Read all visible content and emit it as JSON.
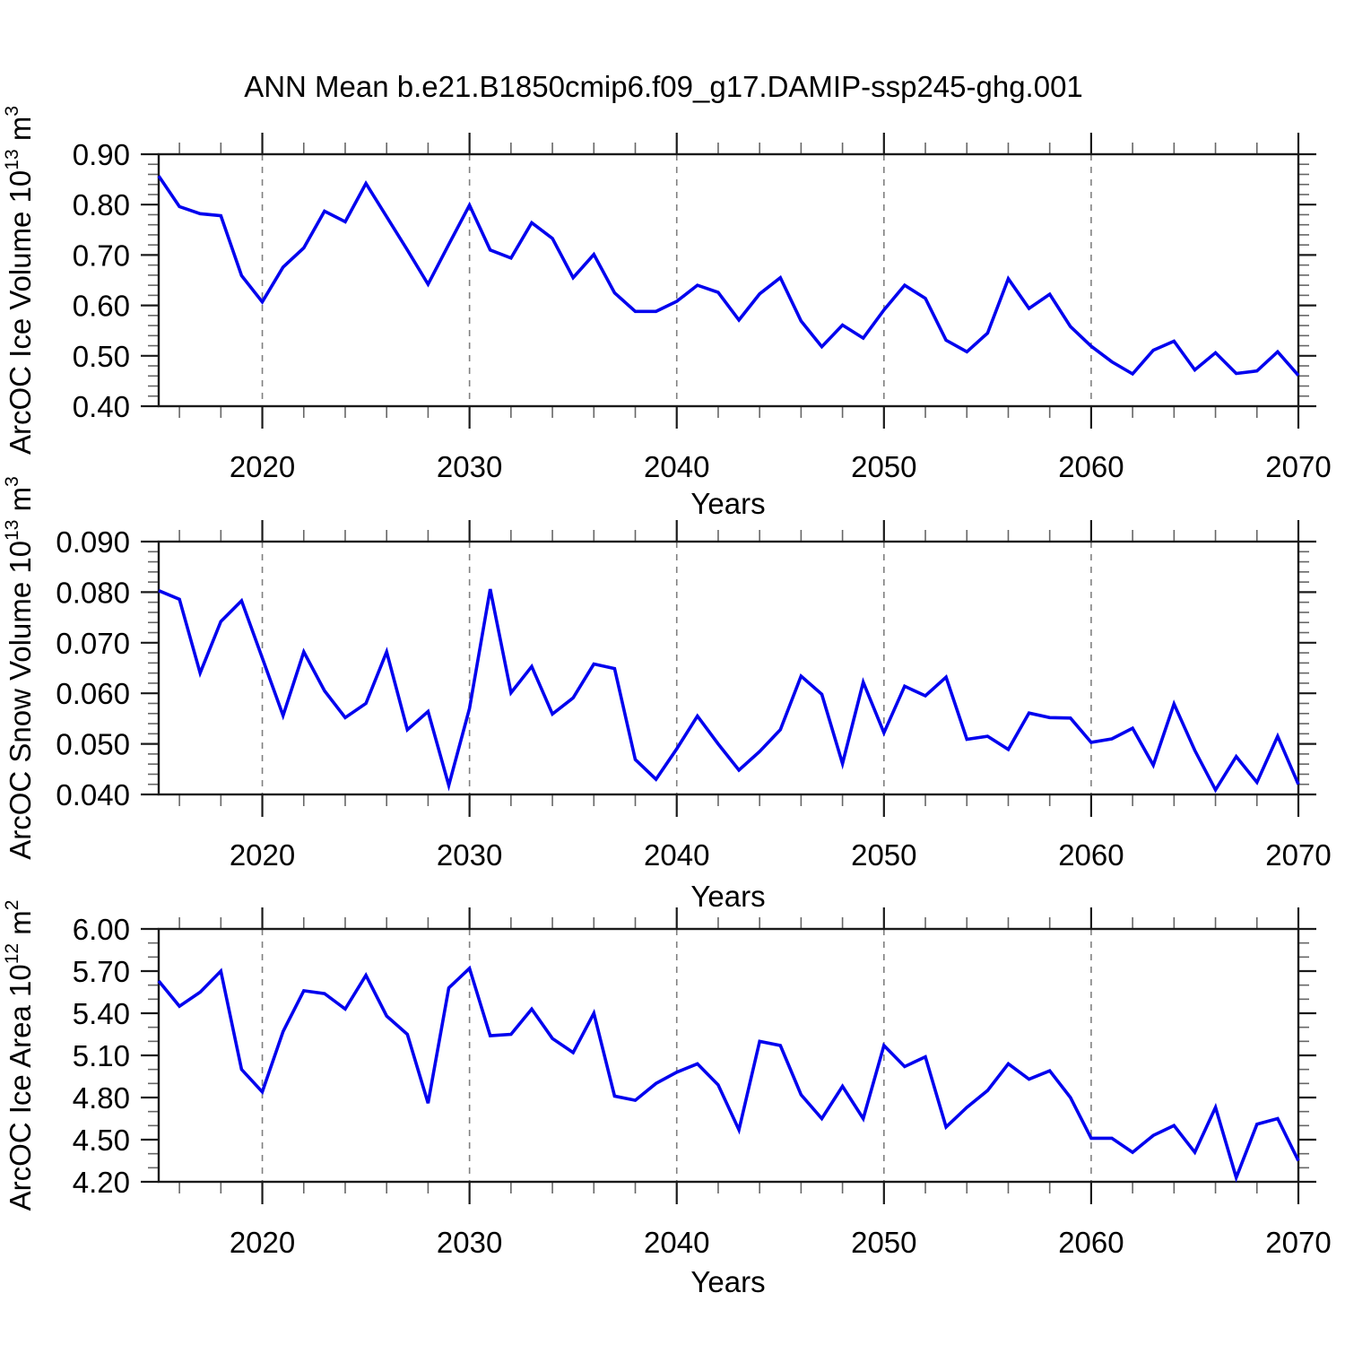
{
  "title": "ANN Mean b.e21.B1850cmip6.f09_g17.DAMIP-ssp245-ghg.001",
  "style": {
    "line_color": "#0000ee",
    "axis_color": "#1a1a1a",
    "minor_tick_color": "#666666",
    "grid_color": "#808080",
    "background": "#ffffff"
  },
  "x_axis": {
    "label": "Years",
    "range": [
      2015,
      2070
    ],
    "years": [
      2015,
      2016,
      2017,
      2018,
      2019,
      2020,
      2021,
      2022,
      2023,
      2024,
      2025,
      2026,
      2027,
      2028,
      2029,
      2030,
      2031,
      2032,
      2033,
      2034,
      2035,
      2036,
      2037,
      2038,
      2039,
      2040,
      2041,
      2042,
      2043,
      2044,
      2045,
      2046,
      2047,
      2048,
      2049,
      2050,
      2051,
      2052,
      2053,
      2054,
      2055,
      2056,
      2057,
      2058,
      2059,
      2060,
      2061,
      2062,
      2063,
      2064,
      2065,
      2066,
      2067,
      2068,
      2069,
      2070
    ],
    "major_ticks": [
      2020,
      2030,
      2040,
      2050,
      2060,
      2070
    ],
    "major_tick_labels": [
      "2020",
      "2030",
      "2040",
      "2050",
      "2060",
      "2070"
    ],
    "minor_tick_step_years": 2,
    "dashed_gridlines_at": [
      2020,
      2030,
      2040,
      2050,
      2060
    ]
  },
  "chart_data": [
    {
      "type": "line",
      "name": "arcoc-ice-volume",
      "ylabel_plain": "ArcOC Ice Volume 10^13 m^3",
      "ylabel_parts": [
        {
          "t": "ArcOC Ice Volume 10"
        },
        {
          "sup": "13"
        },
        {
          "t": " m"
        },
        {
          "sup": "3"
        }
      ],
      "ylim": [
        0.4,
        0.9
      ],
      "y_major_ticks": [
        0.4,
        0.5,
        0.6,
        0.7,
        0.8,
        0.9
      ],
      "y_major_tick_labels": [
        "0.40",
        "0.50",
        "0.60",
        "0.70",
        "0.80",
        "0.90"
      ],
      "y_minor_step": 0.02,
      "values": [
        0.857,
        0.796,
        0.782,
        0.778,
        0.659,
        0.607,
        0.676,
        0.714,
        0.787,
        0.766,
        0.842,
        0.776,
        0.71,
        0.642,
        0.721,
        0.799,
        0.71,
        0.694,
        0.764,
        0.733,
        0.655,
        0.701,
        0.625,
        0.588,
        0.588,
        0.608,
        0.64,
        0.626,
        0.571,
        0.623,
        0.655,
        0.569,
        0.518,
        0.561,
        0.535,
        0.591,
        0.64,
        0.614,
        0.531,
        0.508,
        0.545,
        0.653,
        0.594,
        0.622,
        0.558,
        0.519,
        0.488,
        0.464,
        0.511,
        0.529,
        0.472,
        0.506,
        0.465,
        0.47,
        0.508,
        0.461
      ]
    },
    {
      "type": "line",
      "name": "arcoc-snow-volume",
      "ylabel_plain": "ArcOC Snow Volume 10^13 m^3",
      "ylabel_parts": [
        {
          "t": "ArcOC Snow Volume 10"
        },
        {
          "sup": "13"
        },
        {
          "t": " m"
        },
        {
          "sup": "3"
        }
      ],
      "ylim": [
        0.04,
        0.09
      ],
      "y_major_ticks": [
        0.04,
        0.05,
        0.06,
        0.07,
        0.08,
        0.09
      ],
      "y_major_tick_labels": [
        "0.040",
        "0.050",
        "0.060",
        "0.070",
        "0.080",
        "0.090"
      ],
      "y_minor_step": 0.002,
      "values": [
        0.0803,
        0.0786,
        0.064,
        0.0742,
        0.0783,
        0.067,
        0.0556,
        0.0682,
        0.0605,
        0.0552,
        0.058,
        0.0682,
        0.0528,
        0.0564,
        0.0418,
        0.057,
        0.0806,
        0.0601,
        0.0653,
        0.0559,
        0.0591,
        0.0658,
        0.0649,
        0.0469,
        0.043,
        0.049,
        0.0555,
        0.05,
        0.0448,
        0.0485,
        0.0528,
        0.0634,
        0.0598,
        0.0461,
        0.0622,
        0.0522,
        0.0614,
        0.0595,
        0.0632,
        0.0509,
        0.0515,
        0.0489,
        0.0561,
        0.0552,
        0.0551,
        0.0503,
        0.051,
        0.0531,
        0.0458,
        0.0579,
        0.0487,
        0.0409,
        0.0475,
        0.0424,
        0.0515,
        0.042
      ]
    },
    {
      "type": "line",
      "name": "arcoc-ice-area",
      "ylabel_plain": "ArcOC Ice Area 10^12 m^2",
      "ylabel_parts": [
        {
          "t": "ArcOC Ice Area 10"
        },
        {
          "sup": "12"
        },
        {
          "t": " m"
        },
        {
          "sup": "2"
        }
      ],
      "ylim": [
        4.2,
        6.0
      ],
      "y_major_ticks": [
        4.2,
        4.5,
        4.8,
        5.1,
        5.4,
        5.7,
        6.0
      ],
      "y_major_tick_labels": [
        "4.20",
        "4.50",
        "4.80",
        "5.10",
        "5.40",
        "5.70",
        "6.00"
      ],
      "y_minor_step": 0.1,
      "values": [
        5.63,
        5.45,
        5.55,
        5.7,
        5.0,
        4.84,
        5.27,
        5.56,
        5.54,
        5.43,
        5.67,
        5.38,
        5.25,
        4.76,
        5.58,
        5.72,
        5.24,
        5.25,
        5.43,
        5.22,
        5.12,
        5.4,
        4.81,
        4.78,
        4.9,
        4.98,
        5.04,
        4.89,
        4.57,
        5.2,
        5.17,
        4.82,
        4.65,
        4.88,
        4.65,
        5.17,
        5.02,
        5.09,
        4.59,
        4.73,
        4.85,
        5.04,
        4.93,
        4.99,
        4.8,
        4.51,
        4.51,
        4.41,
        4.53,
        4.6,
        4.41,
        4.73,
        4.23,
        4.61,
        4.65,
        4.35
      ]
    }
  ]
}
